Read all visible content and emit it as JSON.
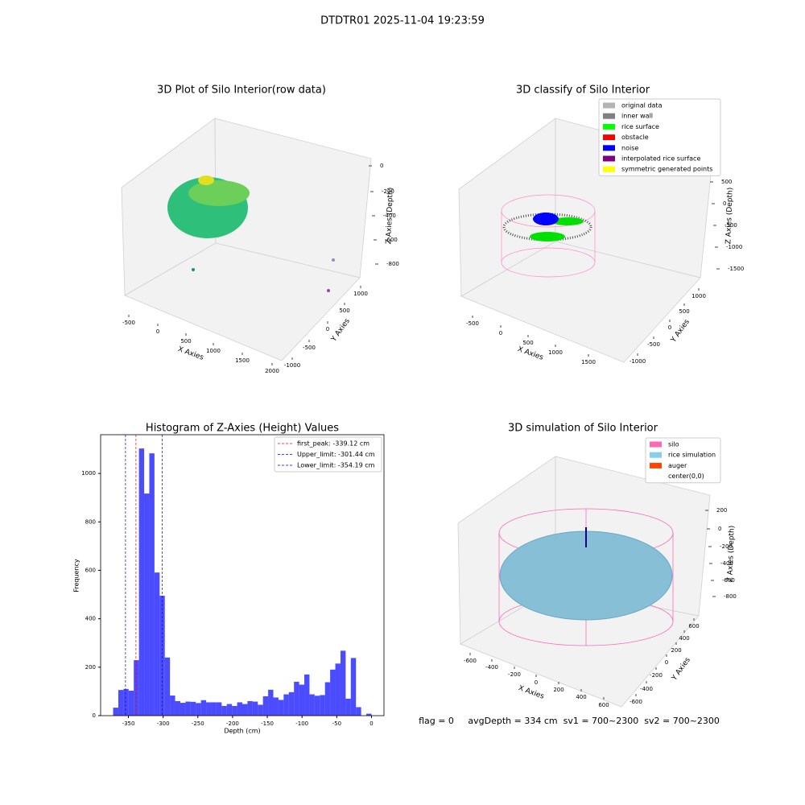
{
  "suptitle": "DTDTR01 2025-11-04 19:23:59",
  "footer": "flag = 0     avgDepth = 334 cm  sv1 = 700~2300  sv2 = 700~2300",
  "chart_data": [
    {
      "type": "scatter3d",
      "title": "3D Plot of Silo Interior(row data)",
      "xlabel": "X Axies",
      "ylabel": "Y Axies",
      "zlabel": "Z Axies (Depth)",
      "xticks": [
        -500,
        0,
        500,
        1000,
        1500,
        2000
      ],
      "yticks": [
        -1000,
        -500,
        0,
        500,
        1000
      ],
      "zticks": [
        0,
        -200,
        -400,
        -600,
        -800
      ]
    },
    {
      "type": "scatter3d",
      "title": "3D classify of Silo Interior",
      "xlabel": "X Axies",
      "ylabel": "Y Axies",
      "zlabel": "Z Axies (Depth)",
      "xticks": [
        -500,
        0,
        500,
        1000,
        1500
      ],
      "yticks": [
        -1000,
        -500,
        0,
        500,
        1000
      ],
      "zticks": [
        500,
        0,
        -500,
        -1000,
        -1500
      ],
      "series": [
        {
          "name": "original data",
          "color": "#b3b3b3"
        },
        {
          "name": "inner wall",
          "color": "#808080"
        },
        {
          "name": "rice surface",
          "color": "#00ff00"
        },
        {
          "name": "obstacle",
          "color": "#ff0000"
        },
        {
          "name": "noise",
          "color": "#0000ff"
        },
        {
          "name": "interpolated rice surface",
          "color": "#800080"
        },
        {
          "name": "symmetric generated points",
          "color": "#ffff00"
        }
      ]
    },
    {
      "type": "histogram",
      "title": "Histogram of Z-Axies (Height) Values",
      "xlabel": "Depth (cm)",
      "ylabel": "Frequency",
      "color": "#0000ff",
      "alpha": 0.7,
      "bins": [
        -372,
        -364.56,
        -357.12,
        -349.68,
        -342.24,
        -334.8,
        -327.36,
        -319.92,
        -312.48,
        -305.04,
        -297.6,
        -290.16,
        -282.72,
        -275.28,
        -267.84,
        -260.4,
        -252.96,
        -245.52,
        -238.08,
        -230.64,
        -223.2,
        -215.76,
        -208.32,
        -200.88,
        -193.44,
        -186,
        -178.56,
        -171.12,
        -163.68,
        -156.24,
        -148.8,
        -141.36,
        -133.92,
        -126.48,
        -119.04,
        -111.6,
        -104.16,
        -96.72,
        -89.28,
        -81.84,
        -74.4,
        -66.96,
        -59.52,
        -52.08,
        -44.64,
        -37.2,
        -29.76,
        -22.32,
        -14.88,
        -7.44,
        0
      ],
      "values": [
        33,
        106,
        110,
        103,
        229,
        1103,
        917,
        1083,
        591,
        495,
        240,
        83,
        60,
        53,
        58,
        57,
        52,
        64,
        55,
        55,
        55,
        40,
        48,
        40,
        55,
        48,
        60,
        58,
        45,
        80,
        107,
        75,
        65,
        88,
        97,
        140,
        128,
        170,
        88,
        82,
        85,
        138,
        190,
        215,
        268,
        70,
        238,
        35,
        0,
        8
      ],
      "xlim": [
        -390,
        18
      ],
      "ylim": [
        0,
        1160
      ],
      "xticks": [
        -350,
        -300,
        -250,
        -200,
        -150,
        -100,
        -50,
        0
      ],
      "yticks": [
        0,
        200,
        400,
        600,
        800,
        1000
      ],
      "lines": [
        {
          "name": "first_peak: -339.12 cm",
          "value": -339.12,
          "color": "#ff0000"
        },
        {
          "name": "Upper_limit: -301.44 cm",
          "value": -301.44,
          "color": "#0000ff"
        },
        {
          "name": "Lower_limit: -354.19 cm",
          "value": -354.19,
          "color": "#0000ff"
        }
      ]
    },
    {
      "type": "scatter3d",
      "title": "3D simulation of Silo Interior",
      "xlabel": "X Axies",
      "ylabel": "Y Axies",
      "zlabel": "Z Axies (Depth)",
      "xticks": [
        -600,
        -400,
        -200,
        0,
        200,
        400,
        600
      ],
      "yticks": [
        -600,
        -400,
        -200,
        0,
        200,
        400,
        600
      ],
      "zticks": [
        200,
        0,
        -200,
        -400,
        -600,
        -800
      ],
      "series": [
        {
          "name": "silo",
          "color": "#ff69b4"
        },
        {
          "name": "rice simulation",
          "color": "#87ceeb"
        },
        {
          "name": "auger",
          "color": "#ff4500"
        },
        {
          "name": "center(0,0)",
          "color": "#ffffff"
        }
      ]
    }
  ]
}
